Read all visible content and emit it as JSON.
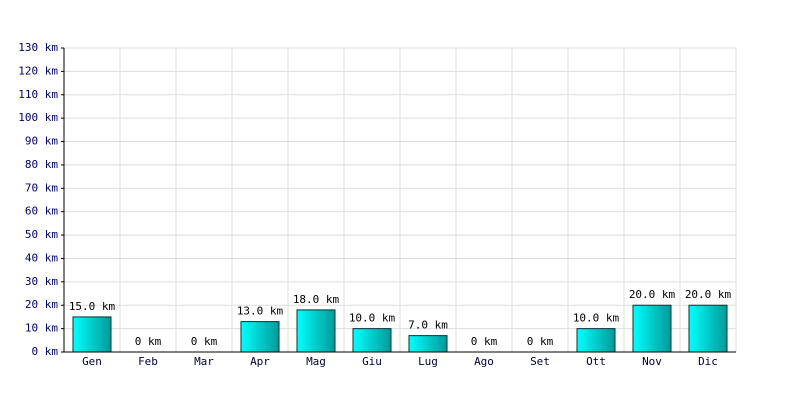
{
  "chart_data": {
    "type": "bar",
    "categories": [
      "Gen",
      "Feb",
      "Mar",
      "Apr",
      "Mag",
      "Giu",
      "Lug",
      "Ago",
      "Set",
      "Ott",
      "Nov",
      "Dic"
    ],
    "values": [
      15,
      0,
      0,
      13,
      18,
      10,
      7,
      0,
      0,
      10,
      20,
      20
    ],
    "value_labels": [
      "15.0 km",
      "0 km",
      "0 km",
      "13.0 km",
      "18.0 km",
      "10.0 km",
      "7.0 km",
      "0 km",
      "0 km",
      "10.0 km",
      "20.0 km",
      "20.0 km"
    ],
    "color": "#009999",
    "ylim": [
      0,
      130
    ],
    "yticks": [
      {
        "value": 0,
        "label": "0 km"
      },
      {
        "value": 10,
        "label": "10 km"
      },
      {
        "value": 20,
        "label": "20 km"
      },
      {
        "value": 30,
        "label": "30 km"
      },
      {
        "value": 40,
        "label": "40 km"
      },
      {
        "value": 50,
        "label": "50 km"
      },
      {
        "value": 60,
        "label": "60 km"
      },
      {
        "value": 70,
        "label": "70 km"
      },
      {
        "value": 80,
        "label": "80 km"
      },
      {
        "value": 90,
        "label": "90 km"
      },
      {
        "value": 100,
        "label": "100 km"
      },
      {
        "value": 110,
        "label": "110 km"
      },
      {
        "value": 120,
        "label": "120 km"
      },
      {
        "value": 130,
        "label": "130 km"
      }
    ],
    "grid": true
  }
}
